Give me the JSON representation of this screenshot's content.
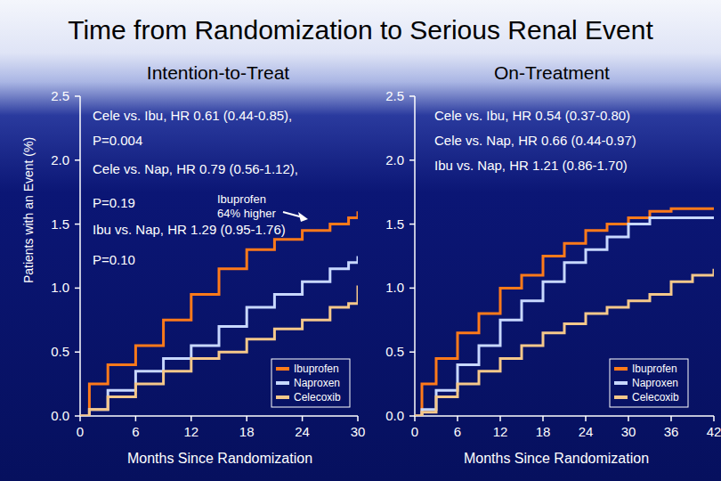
{
  "title": "Time from Randomization to Serious Renal Event",
  "chart_data": [
    {
      "type": "line",
      "line_style": "step",
      "title": "Intention-to-Treat",
      "x_label": "Months Since Randomization",
      "y_label": "Patients with an Event (%)",
      "x": [
        0,
        1,
        3,
        6,
        9,
        12,
        15,
        18,
        21,
        24,
        27,
        29,
        30
      ],
      "series": [
        {
          "name": "Ibuprofen",
          "color": "#ff7a1a",
          "values": [
            0,
            0.25,
            0.4,
            0.55,
            0.75,
            0.95,
            1.15,
            1.3,
            1.38,
            1.45,
            1.5,
            1.55,
            1.6
          ]
        },
        {
          "name": "Naproxen",
          "color": "#c8d8ff",
          "values": [
            0,
            0.05,
            0.2,
            0.35,
            0.45,
            0.55,
            0.7,
            0.85,
            0.95,
            1.05,
            1.15,
            1.2,
            1.25
          ]
        },
        {
          "name": "Celecoxib",
          "color": "#f5c88a",
          "values": [
            0,
            0.05,
            0.15,
            0.25,
            0.35,
            0.45,
            0.5,
            0.6,
            0.68,
            0.75,
            0.85,
            0.88,
            1.02
          ]
        }
      ],
      "xlim": [
        0,
        30
      ],
      "xticks": [
        0,
        6,
        12,
        18,
        24,
        30
      ],
      "ylim": [
        0,
        2.5
      ],
      "yticks": [
        {
          "value": 0,
          "label": "0.0"
        },
        0.5,
        {
          "value": 1,
          "label": "1.0"
        },
        1.5,
        {
          "value": 2,
          "label": "2.0"
        },
        2.5
      ],
      "legend": "lower right",
      "annotations": [
        "Cele vs. Ibu, HR 0.61 (0.44-0.85),",
        "P=0.004",
        "Cele vs. Nap, HR 0.79 (0.56-1.12),",
        "P=0.19",
        "Ibu vs. Nap, HR 1.29 (0.95-1.76)",
        "P=0.10"
      ],
      "callout": [
        "Ibuprofen",
        "64% higher"
      ]
    },
    {
      "type": "line",
      "line_style": "step",
      "title": "On-Treatment",
      "x_label": "Months Since Randomization",
      "x": [
        0,
        1,
        3,
        6,
        9,
        12,
        15,
        18,
        21,
        24,
        27,
        30,
        33,
        36,
        39,
        42
      ],
      "series": [
        {
          "name": "Ibuprofen",
          "color": "#ff7a1a",
          "values": [
            0,
            0.25,
            0.45,
            0.65,
            0.8,
            1.0,
            1.1,
            1.25,
            1.35,
            1.45,
            1.5,
            1.55,
            1.6,
            1.62,
            1.62,
            1.62
          ]
        },
        {
          "name": "Naproxen",
          "color": "#c8d8ff",
          "values": [
            0,
            0.05,
            0.2,
            0.4,
            0.55,
            0.75,
            0.9,
            1.05,
            1.2,
            1.3,
            1.4,
            1.5,
            1.55,
            1.55,
            1.55,
            1.55
          ]
        },
        {
          "name": "Celecoxib",
          "color": "#f5c88a",
          "values": [
            0,
            0.03,
            0.15,
            0.25,
            0.35,
            0.45,
            0.55,
            0.65,
            0.72,
            0.8,
            0.85,
            0.9,
            0.95,
            1.05,
            1.1,
            1.15
          ]
        }
      ],
      "xlim": [
        0,
        42
      ],
      "xticks": [
        0,
        6,
        12,
        18,
        24,
        30,
        36,
        42
      ],
      "ylim": [
        0,
        2.5
      ],
      "yticks": [
        {
          "value": 0,
          "label": "0.0"
        },
        0.5,
        {
          "value": 1,
          "label": "1.0"
        },
        1.5,
        {
          "value": 2,
          "label": "2.0"
        },
        2.5
      ],
      "legend": "lower right",
      "annotations": [
        "Cele vs. Ibu, HR 0.54 (0.37-0.80)",
        "Cele vs. Nap, HR 0.66 (0.44-0.97)",
        "Ibu vs. Nap, HR 1.21 (0.86-1.70)"
      ]
    }
  ]
}
